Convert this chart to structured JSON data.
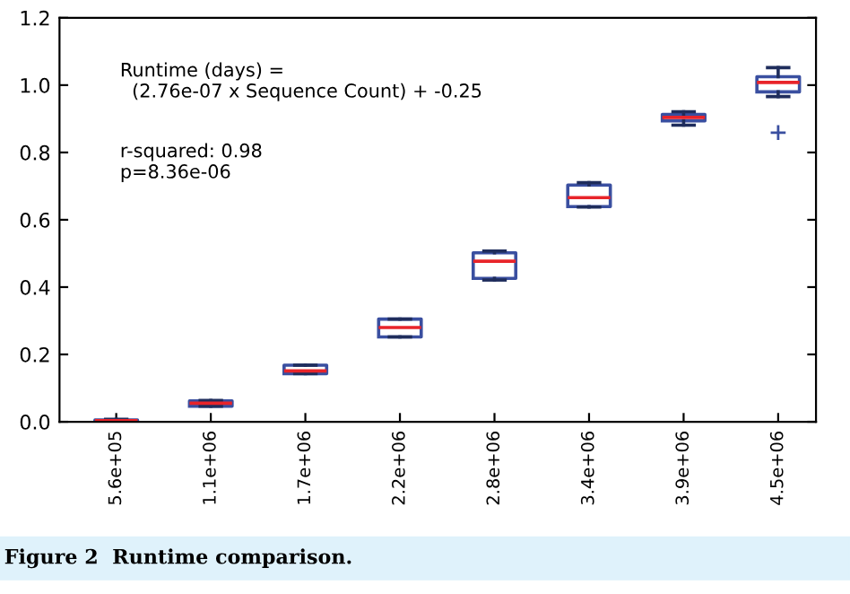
{
  "chart_data": {
    "type": "box",
    "categories": [
      "5.6e+05",
      "1.1e+06",
      "1.7e+06",
      "2.2e+06",
      "2.8e+06",
      "3.4e+06",
      "3.9e+06",
      "4.5e+06"
    ],
    "boxes": [
      {
        "low": 0,
        "q1": 0,
        "median": 0.003,
        "q3": 0.005,
        "high": 0.007
      },
      {
        "low": 0.046,
        "q1": 0.046,
        "median": 0.055,
        "q3": 0.062,
        "high": 0.063
      },
      {
        "low": 0.143,
        "q1": 0.143,
        "median": 0.151,
        "q3": 0.168,
        "high": 0.168
      },
      {
        "low": 0.252,
        "q1": 0.252,
        "median": 0.28,
        "q3": 0.305,
        "high": 0.305
      },
      {
        "low": 0.421,
        "q1": 0.426,
        "median": 0.477,
        "q3": 0.502,
        "high": 0.507
      },
      {
        "low": 0.638,
        "q1": 0.639,
        "median": 0.666,
        "q3": 0.703,
        "high": 0.71
      },
      {
        "low": 0.881,
        "q1": 0.894,
        "median": 0.904,
        "q3": 0.913,
        "high": 0.921
      },
      {
        "low": 0.966,
        "q1": 0.98,
        "median": 1.008,
        "q3": 1.025,
        "high": 1.052,
        "outliers": [
          0.859
        ]
      }
    ],
    "color": "#3a4fa0",
    "ylim": [
      0,
      1.2
    ],
    "yticks": [
      {
        "value": 0,
        "label": "0.0"
      },
      0.2,
      0.4,
      0.6,
      0.8,
      {
        "value": 1,
        "label": "1.0"
      },
      1.2
    ],
    "grid": false,
    "annotations": [
      "Runtime (days) =\n  (2.76e-07 x Sequence Count) + -0.25",
      "r-squared: 0.98\np=8.36e-06",
      "Figure 2  Runtime comparison."
    ]
  }
}
